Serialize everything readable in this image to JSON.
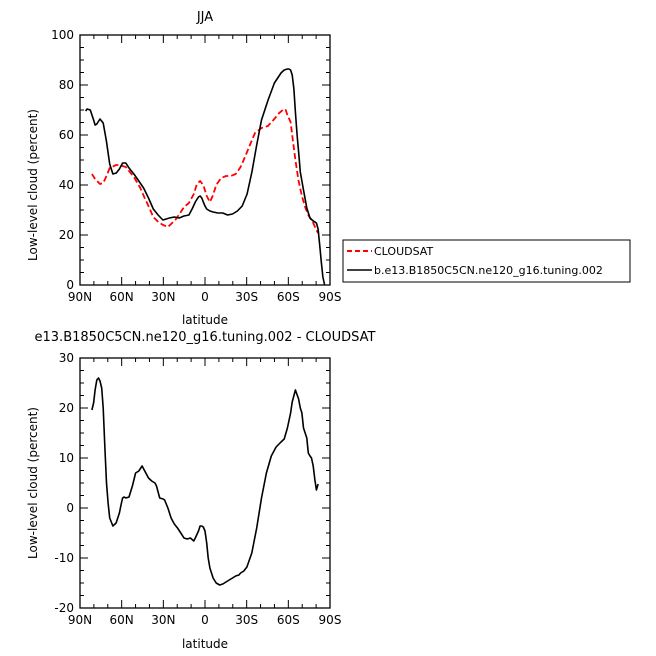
{
  "chart_data": [
    {
      "type": "line",
      "title": "JJA",
      "xlabel": "latitude",
      "ylabel": "Low-level cloud (percent)",
      "xlim": [
        90,
        -90
      ],
      "ylim": [
        0,
        100
      ],
      "xticks": [
        90,
        60,
        30,
        0,
        -30,
        -60,
        -90
      ],
      "xtick_labels": [
        "90N",
        "60N",
        "30N",
        "0",
        "30S",
        "60S",
        "90S"
      ],
      "yticks": [
        0,
        20,
        40,
        60,
        80,
        100
      ],
      "ytick_labels": [
        "0",
        "20",
        "40",
        "60",
        "80",
        "100"
      ],
      "legend_position": "right",
      "series": [
        {
          "name": "CLOUDSAT",
          "color": "#ff0000",
          "style": "dashed",
          "x": [
            81.4,
            79.1,
            75.6,
            73.3,
            70.9,
            68.6,
            64.0,
            61.7,
            57.0,
            54.7,
            51.2,
            46.6,
            43.1,
            40.7,
            37.2,
            33.7,
            30.2,
            26.7,
            24.4,
            20.9,
            17.4,
            15.1,
            11.6,
            8.1,
            5.8,
            3.5,
            1.2,
            -1.2,
            -3.5,
            -5.8,
            -8.1,
            -11.6,
            -15.1,
            -18.6,
            -22.1,
            -25.6,
            -29.1,
            -32.6,
            -36.0,
            -40.7,
            -45.3,
            -49.9,
            -53.4,
            -56.9,
            -58.1,
            -59.3,
            -61.6,
            -62.8,
            -65.1,
            -67.4,
            -69.8,
            -72.1,
            -74.4,
            -77.9,
            -80.2,
            -81.4
          ],
          "y": [
            44.4,
            42.4,
            40.4,
            40.8,
            43.6,
            46.8,
            48.0,
            48.0,
            47.2,
            45.6,
            43.2,
            38.8,
            34.4,
            31.6,
            27.2,
            25.2,
            24.0,
            23.2,
            24.4,
            26.4,
            29.2,
            31.2,
            32.8,
            36.4,
            40.4,
            41.6,
            40.0,
            35.6,
            33.2,
            36.0,
            40.0,
            42.8,
            43.6,
            43.6,
            44.4,
            47.2,
            51.6,
            56.4,
            60.8,
            62.8,
            63.6,
            66.4,
            68.8,
            70.4,
            70.0,
            68.0,
            65.2,
            60.0,
            50.0,
            41.6,
            35.6,
            31.2,
            28.0,
            24.8,
            22.0,
            20.8
          ]
        },
        {
          "name": "b.e13.B1850C5CN.ne120_g16.tuning.002",
          "color": "#000000",
          "style": "solid",
          "x": [
            86.0,
            84.9,
            82.6,
            80.2,
            79.1,
            77.9,
            75.6,
            73.3,
            71.0,
            68.6,
            66.3,
            63.9,
            61.6,
            59.3,
            57.0,
            54.7,
            51.2,
            47.7,
            44.2,
            40.7,
            37.2,
            33.8,
            30.3,
            25.6,
            22.1,
            18.6,
            15.1,
            11.6,
            9.3,
            7.0,
            4.7,
            3.5,
            2.3,
            1.2,
            0.0,
            -1.2,
            -3.5,
            -5.8,
            -9.3,
            -12.8,
            -16.3,
            -19.8,
            -23.3,
            -26.8,
            -30.3,
            -33.8,
            -37.2,
            -40.7,
            -45.4,
            -50.0,
            -54.7,
            -57.0,
            -59.3,
            -60.5,
            -61.6,
            -62.8,
            -64.0,
            -65.1,
            -66.3,
            -67.5,
            -68.6,
            -70.9,
            -73.3,
            -75.6,
            -77.9,
            -79.1,
            -80.2,
            -81.4,
            -82.6,
            -83.7,
            -84.9,
            -86.1
          ],
          "y": [
            69.6,
            70.4,
            70.0,
            66.0,
            64.0,
            64.4,
            66.4,
            64.8,
            57.6,
            48.4,
            44.4,
            44.8,
            46.4,
            48.8,
            48.8,
            46.8,
            44.4,
            41.6,
            38.8,
            34.8,
            30.4,
            28.0,
            26.0,
            26.8,
            27.2,
            26.8,
            27.6,
            28.0,
            30.4,
            33.2,
            35.2,
            35.6,
            34.8,
            33.2,
            31.6,
            30.4,
            29.6,
            29.2,
            28.8,
            28.8,
            28.0,
            28.4,
            29.6,
            31.6,
            36.4,
            45.2,
            56.0,
            66.0,
            74.0,
            80.8,
            84.8,
            86.0,
            86.4,
            86.4,
            86.0,
            84.0,
            78.4,
            69.2,
            60.0,
            52.4,
            45.2,
            38.0,
            30.8,
            26.8,
            25.6,
            25.2,
            24.8,
            22.4,
            16.0,
            9.2,
            3.2,
            0.0
          ]
        }
      ]
    },
    {
      "type": "line",
      "title": "e13.B1850C5CN.ne120_g16.tuning.002 - CLOUDSAT",
      "xlabel": "latitude",
      "ylabel": "Low-level cloud (percent)",
      "xlim": [
        90,
        -90
      ],
      "ylim": [
        -20,
        30
      ],
      "xticks": [
        90,
        60,
        30,
        0,
        -30,
        -60,
        -90
      ],
      "xtick_labels": [
        "90N",
        "60N",
        "30N",
        "0",
        "30S",
        "60S",
        "90S"
      ],
      "yticks": [
        -20,
        -10,
        0,
        10,
        20,
        30
      ],
      "ytick_labels": [
        "-20",
        "-10",
        "0",
        "10",
        "20",
        "30"
      ],
      "series": [
        {
          "color": "#000000",
          "style": "solid",
          "x": [
            81.4,
            80.2,
            79.1,
            77.9,
            76.7,
            75.6,
            74.4,
            73.3,
            72.1,
            70.9,
            69.8,
            68.6,
            66.3,
            64.0,
            61.6,
            60.5,
            59.3,
            58.1,
            57.0,
            54.7,
            52.3,
            50.0,
            47.7,
            45.3,
            43.0,
            40.7,
            38.4,
            36.0,
            34.9,
            32.6,
            30.2,
            29.1,
            26.7,
            24.4,
            22.1,
            19.8,
            17.4,
            15.1,
            12.8,
            10.5,
            8.1,
            7.0,
            4.7,
            3.5,
            2.3,
            1.2,
            0.0,
            -1.2,
            -2.3,
            -3.5,
            -5.8,
            -8.1,
            -10.5,
            -12.8,
            -15.1,
            -17.4,
            -19.8,
            -22.1,
            -24.4,
            -25.6,
            -27.9,
            -30.2,
            -33.7,
            -37.2,
            -40.7,
            -44.2,
            -47.7,
            -51.2,
            -54.7,
            -57.0,
            -59.3,
            -61.6,
            -62.8,
            -65.1,
            -67.4,
            -68.6,
            -69.8,
            -70.9,
            -73.3,
            -74.4,
            -75.6,
            -76.7,
            -77.9,
            -79.1,
            -80.2,
            -81.4
          ],
          "y": [
            19.6,
            21.0,
            23.6,
            25.6,
            26.0,
            25.4,
            24.0,
            20.0,
            12.0,
            5.0,
            1.0,
            -2.0,
            -3.6,
            -3.0,
            -1.0,
            0.6,
            2.0,
            2.2,
            2.0,
            2.2,
            4.4,
            7.0,
            7.4,
            8.4,
            7.2,
            6.0,
            5.4,
            5.0,
            4.4,
            2.0,
            1.8,
            1.6,
            0.0,
            -2.0,
            -3.2,
            -4.0,
            -5.0,
            -6.0,
            -6.2,
            -6.0,
            -6.6,
            -6.0,
            -4.6,
            -3.6,
            -3.6,
            -3.8,
            -4.6,
            -7.0,
            -10.0,
            -12.0,
            -14.0,
            -15.0,
            -15.4,
            -15.2,
            -14.8,
            -14.4,
            -14.0,
            -13.6,
            -13.4,
            -13.0,
            -12.6,
            -11.8,
            -9.0,
            -4.0,
            2.0,
            7.0,
            10.4,
            12.2,
            13.2,
            13.8,
            16.0,
            19.0,
            21.2,
            23.6,
            21.8,
            20.0,
            19.0,
            16.0,
            14.0,
            11.0,
            10.4,
            10.0,
            8.4,
            5.6,
            3.6,
            4.8
          ]
        }
      ]
    }
  ]
}
